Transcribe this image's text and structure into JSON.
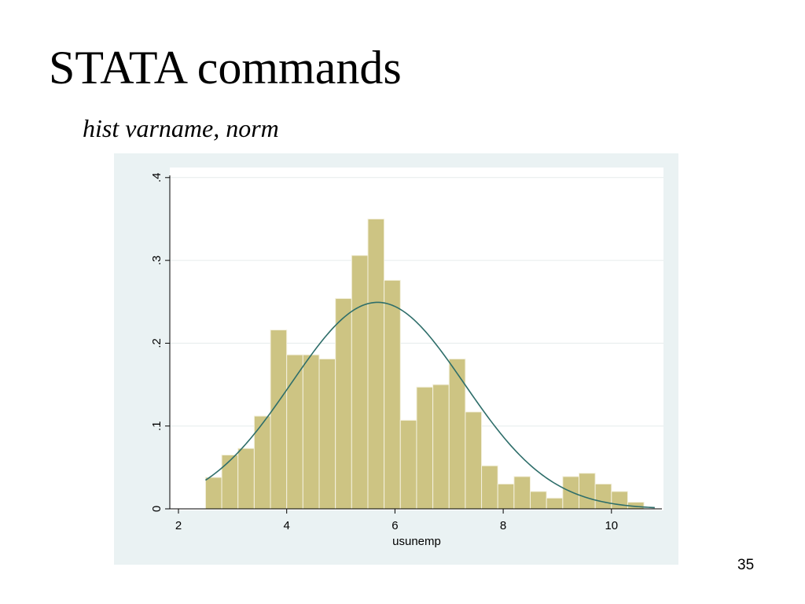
{
  "slide": {
    "title": "STATA commands",
    "subtitle": "hist varname, norm",
    "page_number": "35"
  },
  "colors": {
    "panel_background": "#eaf2f3",
    "plot_background": "#ffffff",
    "bar_fill": "#cdc483",
    "bar_edge": "#f4f1df",
    "normal_curve": "#2e6e6a",
    "gridline": "#e6ecec"
  },
  "chart_data": {
    "type": "bar",
    "title": "",
    "xlabel": "usunemp",
    "ylabel": "",
    "xlim": [
      2,
      10.8
    ],
    "ylim": [
      0,
      0.4
    ],
    "x_ticks": [
      2,
      4,
      6,
      8,
      10
    ],
    "x_tick_labels": [
      "2",
      "4",
      "6",
      "8",
      "10"
    ],
    "y_ticks": [
      0,
      0.1,
      0.2,
      0.3,
      0.4
    ],
    "y_tick_labels": [
      "0",
      ".1",
      ".2",
      ".3",
      ".4"
    ],
    "grid": true,
    "bin_width": 0.3,
    "bins": [
      {
        "x0": 2.5,
        "x1": 2.8,
        "density": 0.038
      },
      {
        "x0": 2.8,
        "x1": 3.1,
        "density": 0.065
      },
      {
        "x0": 3.1,
        "x1": 3.4,
        "density": 0.073
      },
      {
        "x0": 3.4,
        "x1": 3.7,
        "density": 0.112
      },
      {
        "x0": 3.7,
        "x1": 4.0,
        "density": 0.216
      },
      {
        "x0": 4.0,
        "x1": 4.3,
        "density": 0.186
      },
      {
        "x0": 4.3,
        "x1": 4.6,
        "density": 0.186
      },
      {
        "x0": 4.6,
        "x1": 4.9,
        "density": 0.181
      },
      {
        "x0": 4.9,
        "x1": 5.2,
        "density": 0.254
      },
      {
        "x0": 5.2,
        "x1": 5.5,
        "density": 0.306
      },
      {
        "x0": 5.5,
        "x1": 5.8,
        "density": 0.35
      },
      {
        "x0": 5.8,
        "x1": 6.1,
        "density": 0.276
      },
      {
        "x0": 6.1,
        "x1": 6.4,
        "density": 0.107
      },
      {
        "x0": 6.4,
        "x1": 6.7,
        "density": 0.147
      },
      {
        "x0": 6.7,
        "x1": 7.0,
        "density": 0.15
      },
      {
        "x0": 7.0,
        "x1": 7.3,
        "density": 0.181
      },
      {
        "x0": 7.3,
        "x1": 7.6,
        "density": 0.117
      },
      {
        "x0": 7.6,
        "x1": 7.9,
        "density": 0.052
      },
      {
        "x0": 7.9,
        "x1": 8.2,
        "density": 0.03
      },
      {
        "x0": 8.2,
        "x1": 8.5,
        "density": 0.039
      },
      {
        "x0": 8.5,
        "x1": 8.8,
        "density": 0.021
      },
      {
        "x0": 8.8,
        "x1": 9.1,
        "density": 0.013
      },
      {
        "x0": 9.1,
        "x1": 9.4,
        "density": 0.039
      },
      {
        "x0": 9.4,
        "x1": 9.7,
        "density": 0.043
      },
      {
        "x0": 9.7,
        "x1": 10.0,
        "density": 0.03
      },
      {
        "x0": 10.0,
        "x1": 10.3,
        "density": 0.021
      },
      {
        "x0": 10.3,
        "x1": 10.6,
        "density": 0.008
      }
    ],
    "normal_curve": {
      "mean": 5.68,
      "sd": 1.6,
      "x_range": [
        2.5,
        10.8
      ]
    }
  }
}
